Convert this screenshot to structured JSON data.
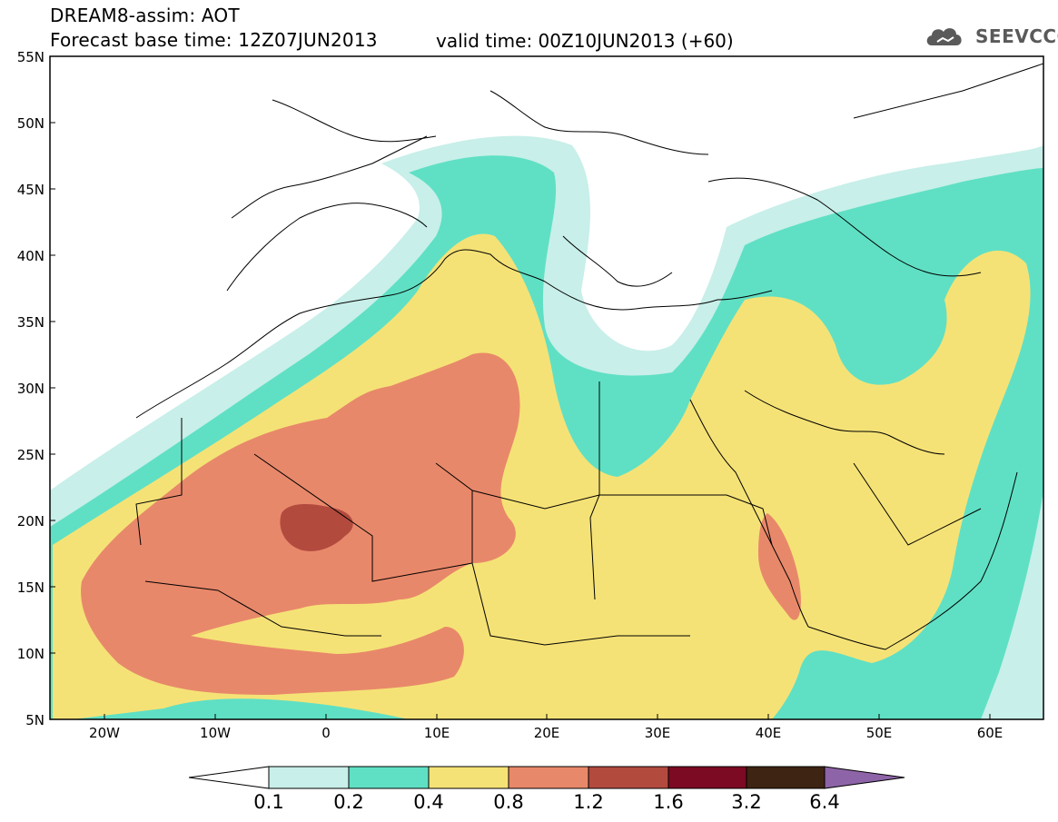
{
  "header": {
    "line1": "DREAM8-assim: AOT",
    "line2": "Forecast base time: 12Z07JUN2013",
    "valid": "valid time: 00Z10JUN2013 (+60)",
    "logo_text": "SEEVCCC",
    "logo_icon": "cloud-icon"
  },
  "axes": {
    "lat_labels": [
      "55N",
      "50N",
      "45N",
      "40N",
      "35N",
      "30N",
      "25N",
      "20N",
      "15N",
      "10N",
      "5N"
    ],
    "lon_labels": [
      "20W",
      "10W",
      "0",
      "10E",
      "20E",
      "30E",
      "40E",
      "50E",
      "60E"
    ]
  },
  "colorbar": {
    "labels": [
      "0.1",
      "0.2",
      "0.4",
      "0.8",
      "1.2",
      "1.6",
      "3.2",
      "6.4"
    ],
    "colors": [
      "#ffffff",
      "#c8efe9",
      "#5fe0c4",
      "#f5e276",
      "#e8886a",
      "#b24a3e",
      "#7c0a22",
      "#3e2412",
      "#8e64a8"
    ]
  },
  "colors": {
    "c01": "#c8efe9",
    "c02": "#5fe0c4",
    "c04": "#f5e276",
    "c08": "#e8886a",
    "c12": "#b24a3e"
  }
}
